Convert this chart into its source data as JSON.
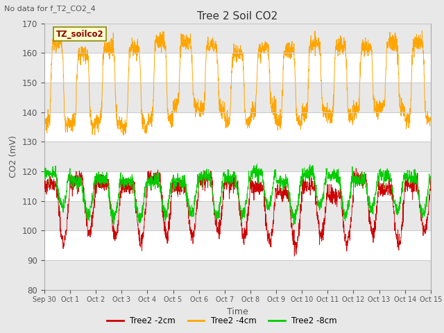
{
  "title": "Tree 2 Soil CO2",
  "subtitle": "No data for f_T2_CO2_4",
  "ylabel": "CO2 (mV)",
  "xlabel": "Time",
  "annotation": "TZ_soilco2",
  "ylim": [
    80,
    170
  ],
  "yticks": [
    80,
    90,
    100,
    110,
    120,
    130,
    140,
    150,
    160,
    170
  ],
  "xtick_labels": [
    "Sep 30",
    "Oct 1",
    "Oct 2",
    "Oct 3",
    "Oct 4",
    "Oct 5",
    "Oct 6",
    "Oct 7",
    "Oct 8",
    "Oct 9",
    "Oct 10",
    "Oct 11",
    "Oct 12",
    "Oct 13",
    "Oct 14",
    "Oct 15"
  ],
  "color_2cm": "#cc0000",
  "color_4cm": "#ffa500",
  "color_8cm": "#00cc00",
  "legend_labels": [
    "Tree2 -2cm",
    "Tree2 -4cm",
    "Tree2 -8cm"
  ],
  "n_points": 2160,
  "days": 15,
  "background_color": "#e8e8e8",
  "plot_bg_color": "#ffffff",
  "grid_color": "#cccccc",
  "annotation_bg": "#ffffcc",
  "annotation_border": "#888800"
}
